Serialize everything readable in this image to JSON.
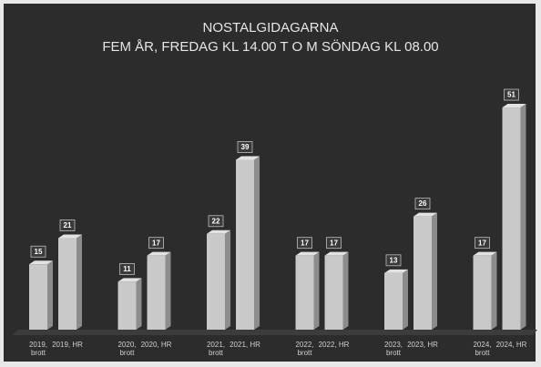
{
  "chart_data": {
    "type": "bar",
    "title": "NOSTALGIDAGARNA",
    "subtitle": "FEM ÅR, FREDAG KL 14.00 T O M SÖNDAG KL 08.00",
    "categories": [
      "2019, brott",
      "2019, HR",
      "2020, brott",
      "2020, HR",
      "2021, brott",
      "2021, HR",
      "2022, brott",
      "2022, HR",
      "2023, brott",
      "2023, HR",
      "2024, brott",
      "2024, HR"
    ],
    "values": [
      15,
      21,
      11,
      17,
      22,
      39,
      17,
      17,
      13,
      26,
      17,
      51
    ],
    "color": "#c9c9c9",
    "ylim": [
      0,
      60
    ]
  }
}
